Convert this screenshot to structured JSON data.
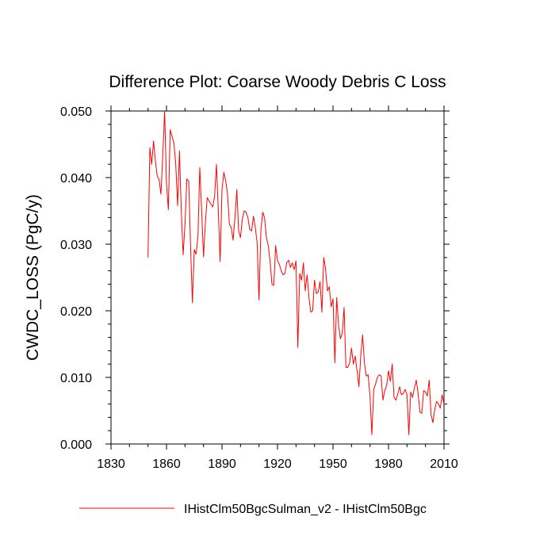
{
  "chart_data": {
    "type": "line",
    "title": "Difference Plot: Coarse Woody Debris C Loss",
    "xlabel": "",
    "ylabel": "CWDC_LOSS  (PgC/y)",
    "xlim": [
      1830,
      2010
    ],
    "ylim": [
      0.0,
      0.05
    ],
    "x_ticks": [
      "1830",
      "1860",
      "1890",
      "1920",
      "1950",
      "1980",
      "2010"
    ],
    "y_ticks": [
      "0.000",
      "0.010",
      "0.020",
      "0.030",
      "0.040",
      "0.050"
    ],
    "grid": false,
    "legend_position": "bottom",
    "series": [
      {
        "name": "IHistClm50BgcSulman_v2 - IHistClm50Bgc",
        "color": "#ff0000",
        "x": [
          1850,
          1851,
          1852,
          1853,
          1854,
          1855,
          1856,
          1857,
          1858,
          1859,
          1860,
          1861,
          1862,
          1863,
          1864,
          1865,
          1866,
          1867,
          1868,
          1869,
          1870,
          1871,
          1872,
          1873,
          1874,
          1875,
          1876,
          1877,
          1878,
          1879,
          1880,
          1881,
          1882,
          1883,
          1884,
          1885,
          1886,
          1887,
          1888,
          1889,
          1890,
          1891,
          1892,
          1893,
          1894,
          1895,
          1896,
          1897,
          1898,
          1899,
          1900,
          1901,
          1902,
          1903,
          1904,
          1905,
          1906,
          1907,
          1908,
          1909,
          1910,
          1911,
          1912,
          1913,
          1914,
          1915,
          1916,
          1917,
          1918,
          1919,
          1920,
          1921,
          1922,
          1923,
          1924,
          1925,
          1926,
          1927,
          1928,
          1929,
          1930,
          1931,
          1932,
          1933,
          1934,
          1935,
          1936,
          1937,
          1938,
          1939,
          1940,
          1941,
          1942,
          1943,
          1944,
          1945,
          1946,
          1947,
          1948,
          1949,
          1950,
          1951,
          1952,
          1953,
          1954,
          1955,
          1956,
          1957,
          1958,
          1959,
          1960,
          1961,
          1962,
          1963,
          1964,
          1965,
          1966,
          1967,
          1968,
          1969,
          1970,
          1971,
          1972,
          1973,
          1974,
          1975,
          1976,
          1977,
          1978,
          1979,
          1980,
          1981,
          1982,
          1983,
          1984,
          1985,
          1986,
          1987,
          1988,
          1989,
          1990,
          1991,
          1992,
          1993,
          1994,
          1995,
          1996,
          1997,
          1998,
          1999,
          2000,
          2001,
          2002,
          2003,
          2004,
          2005,
          2006,
          2007,
          2008,
          2009,
          2010
        ],
        "y": [
          0.028,
          0.0445,
          0.042,
          0.0455,
          0.0425,
          0.0402,
          0.0397,
          0.0375,
          0.0435,
          0.05,
          0.039,
          0.0352,
          0.0472,
          0.0462,
          0.0452,
          0.042,
          0.0358,
          0.044,
          0.035,
          0.0284,
          0.033,
          0.0398,
          0.0395,
          0.0298,
          0.0212,
          0.0292,
          0.0285,
          0.0312,
          0.0415,
          0.035,
          0.0281,
          0.0332,
          0.037,
          0.0365,
          0.036,
          0.0356,
          0.0372,
          0.042,
          0.035,
          0.0274,
          0.0382,
          0.0408,
          0.0395,
          0.0375,
          0.033,
          0.0325,
          0.0306,
          0.034,
          0.0382,
          0.032,
          0.031,
          0.0338,
          0.035,
          0.0348,
          0.034,
          0.0322,
          0.032,
          0.0342,
          0.0325,
          0.0302,
          0.0216,
          0.032,
          0.0348,
          0.034,
          0.031,
          0.0298,
          0.0274,
          0.024,
          0.0238,
          0.0298,
          0.0275,
          0.027,
          0.026,
          0.0254,
          0.0256,
          0.0272,
          0.0276,
          0.0265,
          0.0272,
          0.0262,
          0.0275,
          0.0145,
          0.0256,
          0.0246,
          0.0272,
          0.023,
          0.0254,
          0.022,
          0.0198,
          0.02,
          0.0246,
          0.0226,
          0.0228,
          0.0244,
          0.0198,
          0.028,
          0.0262,
          0.023,
          0.0236,
          0.0206,
          0.0218,
          0.0122,
          0.022,
          0.0178,
          0.0158,
          0.0166,
          0.0205,
          0.0115,
          0.0115,
          0.0122,
          0.0144,
          0.012,
          0.0132,
          0.011,
          0.0086,
          0.0132,
          0.0164,
          0.0122,
          0.0102,
          0.0104,
          0.0072,
          0.0014,
          0.0082,
          0.009,
          0.01,
          0.0104,
          0.0102,
          0.0066,
          0.008,
          0.0088,
          0.011,
          0.0094,
          0.012,
          0.007,
          0.0066,
          0.0075,
          0.0086,
          0.0074,
          0.0076,
          0.0082,
          0.0074,
          0.0014,
          0.0078,
          0.007,
          0.0084,
          0.0096,
          0.0076,
          0.0048,
          0.0046,
          0.008,
          0.0078,
          0.0072,
          0.0096,
          0.0044,
          0.0032,
          0.0052,
          0.0064,
          0.006,
          0.0054,
          0.0074,
          0.006
        ]
      }
    ]
  }
}
